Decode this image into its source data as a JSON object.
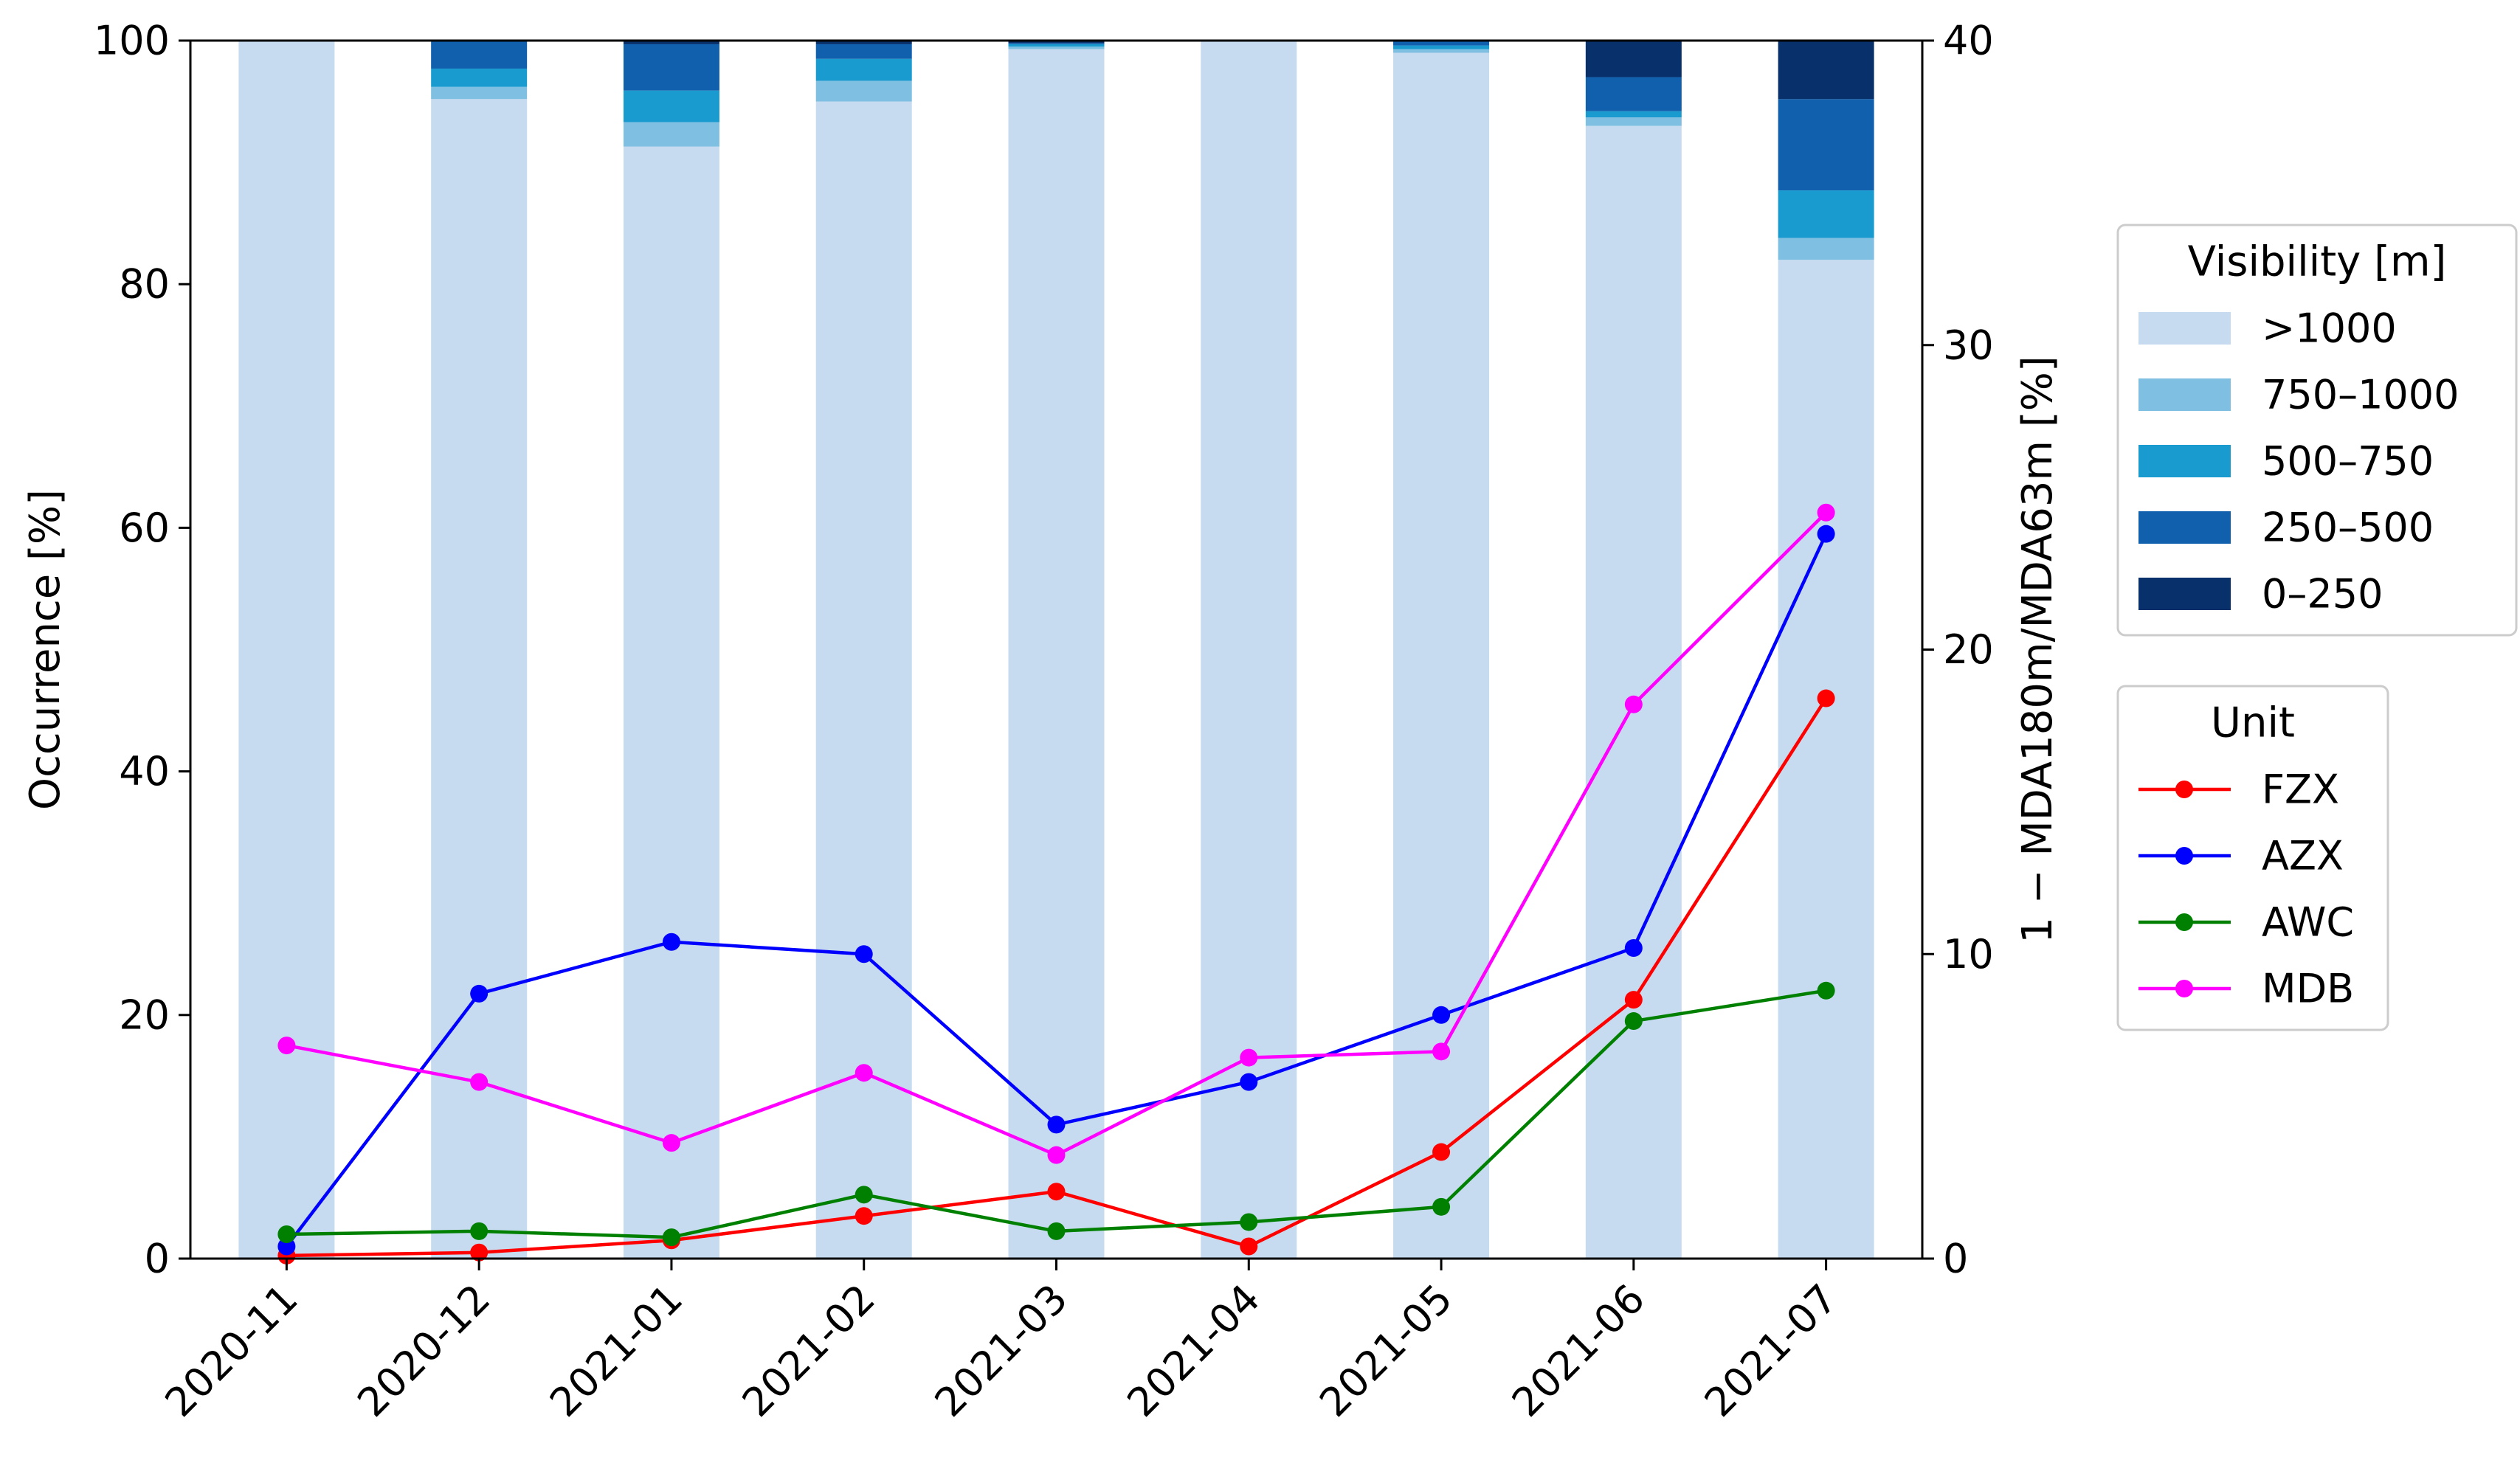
{
  "chart_data": {
    "type": "bar",
    "categories": [
      "2020-11",
      "2020-12",
      "2021-01",
      "2021-02",
      "2021-03",
      "2021-04",
      "2021-05",
      "2021-06",
      "2021-07"
    ],
    "ylabel": "Occurrence [%]",
    "ylabel_right": "1 − MDA180m/MDA63m [%]",
    "ylim": [
      0,
      100
    ],
    "ylim_right": [
      0,
      40
    ],
    "yticks": [
      0,
      20,
      40,
      60,
      80,
      100
    ],
    "yticks_right": [
      0,
      10,
      20,
      30,
      40
    ],
    "grid": false,
    "bar_series": {
      "legend_title": "Visibility [m]",
      "legend_position": "right",
      "stack_order": [
        ">1000",
        "750–1000",
        "500–750",
        "250–500",
        "0–250"
      ],
      "series": [
        {
          "name": ">1000",
          "color": "#c6dbef",
          "values": [
            100.0,
            95.2,
            91.3,
            95.0,
            99.3,
            100.0,
            99.0,
            93.0,
            82.0
          ]
        },
        {
          "name": "750–1000",
          "color": "#7fbfe1",
          "values": [
            0.0,
            1.0,
            2.0,
            1.7,
            0.2,
            0.0,
            0.3,
            0.7,
            1.8
          ]
        },
        {
          "name": "500–750",
          "color": "#1a9bd0",
          "values": [
            0.0,
            1.5,
            2.6,
            1.8,
            0.2,
            0.0,
            0.3,
            0.5,
            3.9
          ]
        },
        {
          "name": "250–500",
          "color": "#1060ad",
          "values": [
            0.0,
            2.3,
            3.8,
            1.2,
            0.1,
            0.0,
            0.4,
            2.8,
            7.5
          ]
        },
        {
          "name": "0–250",
          "color": "#08306b",
          "values": [
            0.0,
            0.0,
            0.3,
            0.3,
            0.2,
            0.0,
            0.0,
            3.0,
            4.8
          ]
        }
      ]
    },
    "line_series": {
      "legend_title": "Unit",
      "axis": "right",
      "series": [
        {
          "name": "FZX",
          "color": "#ff0000",
          "values": [
            0.1,
            0.2,
            0.6,
            1.4,
            2.2,
            0.4,
            3.5,
            8.5,
            18.4
          ]
        },
        {
          "name": "AZX",
          "color": "#0000ff",
          "values": [
            0.4,
            8.7,
            10.4,
            10.0,
            4.4,
            5.8,
            8.0,
            10.2,
            23.8
          ]
        },
        {
          "name": "AWC",
          "color": "#008000",
          "values": [
            0.8,
            0.9,
            0.7,
            2.1,
            0.9,
            1.2,
            1.7,
            7.8,
            8.8
          ]
        },
        {
          "name": "MDB",
          "color": "#ff00ff",
          "values": [
            7.0,
            5.8,
            3.8,
            6.1,
            3.4,
            6.6,
            6.8,
            18.2,
            24.5
          ]
        }
      ]
    }
  }
}
